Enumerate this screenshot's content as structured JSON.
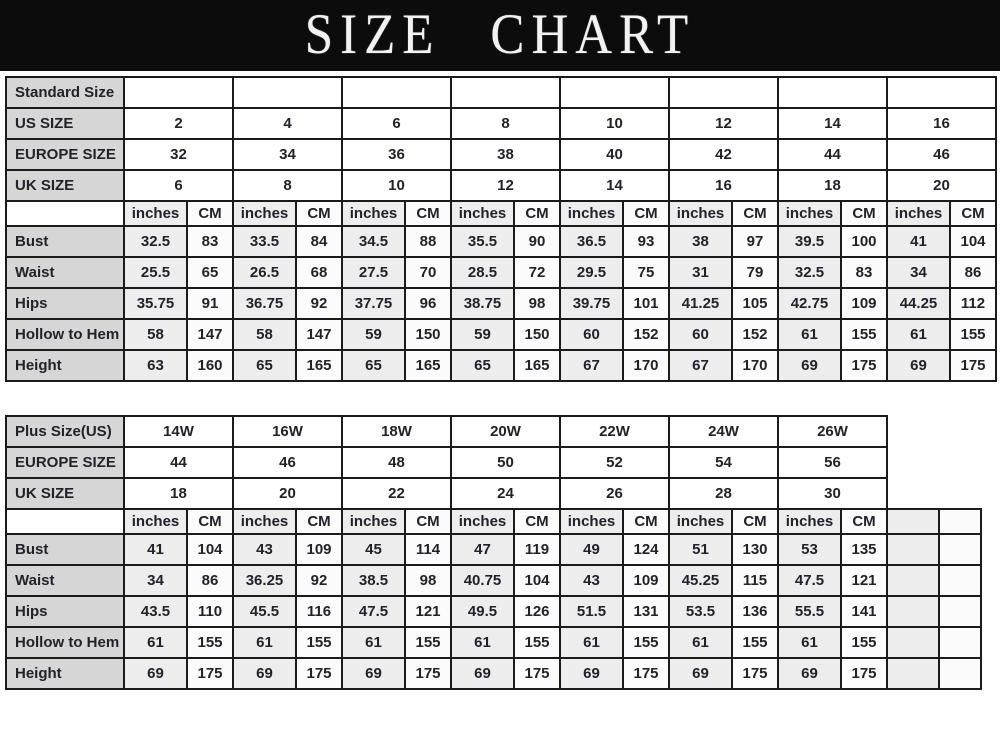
{
  "banner": {
    "title_word1": "SIZE",
    "title_word2": "CHART"
  },
  "units": {
    "inches": "inches",
    "cm": "CM"
  },
  "colors": {
    "banner_bg": "#0c0c0c",
    "title_text": "#f2f2f2",
    "label_cell_bg": "#d6d6d6",
    "inches_cell_bg": "#ededed",
    "cm_cell_bg": "#fbfbfb",
    "border": "#1b1b1b",
    "text": "#22222a"
  },
  "chart_data": [
    {
      "type": "table",
      "name": "standard-size",
      "groups": 8,
      "trailing_empty_pairs": 0,
      "size_rows": [
        {
          "label": "Standard Size",
          "values": [
            "",
            "",
            "",
            "",
            "",
            "",
            "",
            ""
          ]
        },
        {
          "label": "US SIZE",
          "values": [
            "2",
            "4",
            "6",
            "8",
            "10",
            "12",
            "14",
            "16"
          ]
        },
        {
          "label": "EUROPE SIZE",
          "values": [
            "32",
            "34",
            "36",
            "38",
            "40",
            "42",
            "44",
            "46"
          ]
        },
        {
          "label": "UK SIZE",
          "values": [
            "6",
            "8",
            "10",
            "12",
            "14",
            "16",
            "18",
            "20"
          ]
        }
      ],
      "measure_rows": [
        {
          "label": "Bust",
          "pairs": [
            [
              "32.5",
              "83"
            ],
            [
              "33.5",
              "84"
            ],
            [
              "34.5",
              "88"
            ],
            [
              "35.5",
              "90"
            ],
            [
              "36.5",
              "93"
            ],
            [
              "38",
              "97"
            ],
            [
              "39.5",
              "100"
            ],
            [
              "41",
              "104"
            ]
          ]
        },
        {
          "label": "Waist",
          "pairs": [
            [
              "25.5",
              "65"
            ],
            [
              "26.5",
              "68"
            ],
            [
              "27.5",
              "70"
            ],
            [
              "28.5",
              "72"
            ],
            [
              "29.5",
              "75"
            ],
            [
              "31",
              "79"
            ],
            [
              "32.5",
              "83"
            ],
            [
              "34",
              "86"
            ]
          ]
        },
        {
          "label": "Hips",
          "pairs": [
            [
              "35.75",
              "91"
            ],
            [
              "36.75",
              "92"
            ],
            [
              "37.75",
              "96"
            ],
            [
              "38.75",
              "98"
            ],
            [
              "39.75",
              "101"
            ],
            [
              "41.25",
              "105"
            ],
            [
              "42.75",
              "109"
            ],
            [
              "44.25",
              "112"
            ]
          ]
        },
        {
          "label": "Hollow to Hem",
          "pairs": [
            [
              "58",
              "147"
            ],
            [
              "58",
              "147"
            ],
            [
              "59",
              "150"
            ],
            [
              "59",
              "150"
            ],
            [
              "60",
              "152"
            ],
            [
              "60",
              "152"
            ],
            [
              "61",
              "155"
            ],
            [
              "61",
              "155"
            ]
          ]
        },
        {
          "label": "Height",
          "pairs": [
            [
              "63",
              "160"
            ],
            [
              "65",
              "165"
            ],
            [
              "65",
              "165"
            ],
            [
              "65",
              "165"
            ],
            [
              "67",
              "170"
            ],
            [
              "67",
              "170"
            ],
            [
              "69",
              "175"
            ],
            [
              "69",
              "175"
            ]
          ]
        }
      ]
    },
    {
      "type": "table",
      "name": "plus-size",
      "groups": 7,
      "trailing_empty_pairs": 1,
      "size_rows": [
        {
          "label": "Plus Size(US)",
          "values": [
            "14W",
            "16W",
            "18W",
            "20W",
            "22W",
            "24W",
            "26W"
          ]
        },
        {
          "label": "EUROPE SIZE",
          "values": [
            "44",
            "46",
            "48",
            "50",
            "52",
            "54",
            "56"
          ]
        },
        {
          "label": "UK SIZE",
          "values": [
            "18",
            "20",
            "22",
            "24",
            "26",
            "28",
            "30"
          ]
        }
      ],
      "measure_rows": [
        {
          "label": "Bust",
          "pairs": [
            [
              "41",
              "104"
            ],
            [
              "43",
              "109"
            ],
            [
              "45",
              "114"
            ],
            [
              "47",
              "119"
            ],
            [
              "49",
              "124"
            ],
            [
              "51",
              "130"
            ],
            [
              "53",
              "135"
            ]
          ]
        },
        {
          "label": "Waist",
          "pairs": [
            [
              "34",
              "86"
            ],
            [
              "36.25",
              "92"
            ],
            [
              "38.5",
              "98"
            ],
            [
              "40.75",
              "104"
            ],
            [
              "43",
              "109"
            ],
            [
              "45.25",
              "115"
            ],
            [
              "47.5",
              "121"
            ]
          ]
        },
        {
          "label": "Hips",
          "pairs": [
            [
              "43.5",
              "110"
            ],
            [
              "45.5",
              "116"
            ],
            [
              "47.5",
              "121"
            ],
            [
              "49.5",
              "126"
            ],
            [
              "51.5",
              "131"
            ],
            [
              "53.5",
              "136"
            ],
            [
              "55.5",
              "141"
            ]
          ]
        },
        {
          "label": "Hollow to Hem",
          "pairs": [
            [
              "61",
              "155"
            ],
            [
              "61",
              "155"
            ],
            [
              "61",
              "155"
            ],
            [
              "61",
              "155"
            ],
            [
              "61",
              "155"
            ],
            [
              "61",
              "155"
            ],
            [
              "61",
              "155"
            ]
          ]
        },
        {
          "label": "Height",
          "pairs": [
            [
              "69",
              "175"
            ],
            [
              "69",
              "175"
            ],
            [
              "69",
              "175"
            ],
            [
              "69",
              "175"
            ],
            [
              "69",
              "175"
            ],
            [
              "69",
              "175"
            ],
            [
              "69",
              "175"
            ]
          ]
        }
      ]
    }
  ]
}
